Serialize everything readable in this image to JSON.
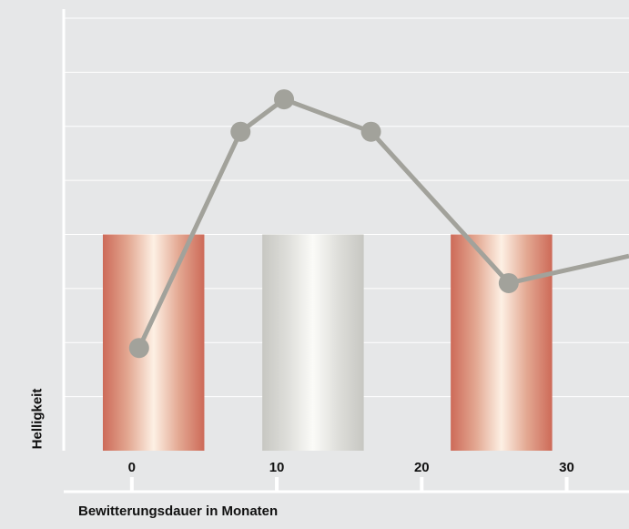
{
  "chart_data": {
    "type": "bar+line",
    "xlabel": "Bewitterungsdauer in Monaten",
    "ylabel": "Helligkeit",
    "x_ticks": [
      "0",
      "10",
      "20",
      "30"
    ],
    "xlim": [
      -4.7,
      34.3
    ],
    "ylim": [
      0,
      8
    ],
    "grid": true,
    "bars": [
      {
        "x_start": -2,
        "x_end": 5,
        "value": 4,
        "style": "copper",
        "color": "#cd6a58"
      },
      {
        "x_start": 9,
        "x_end": 16,
        "value": 4,
        "style": "silver",
        "color": "#cfcfcb"
      },
      {
        "x_start": 22,
        "x_end": 29,
        "value": 4,
        "style": "copper",
        "color": "#cd6a58"
      }
    ],
    "series": [
      {
        "x": [
          0.5,
          7.5,
          10.5,
          16.5,
          26,
          34.3
        ],
        "y": [
          1.9,
          5.9,
          6.5,
          5.9,
          3.1,
          3.6
        ],
        "color": "#a2a29b"
      }
    ]
  }
}
